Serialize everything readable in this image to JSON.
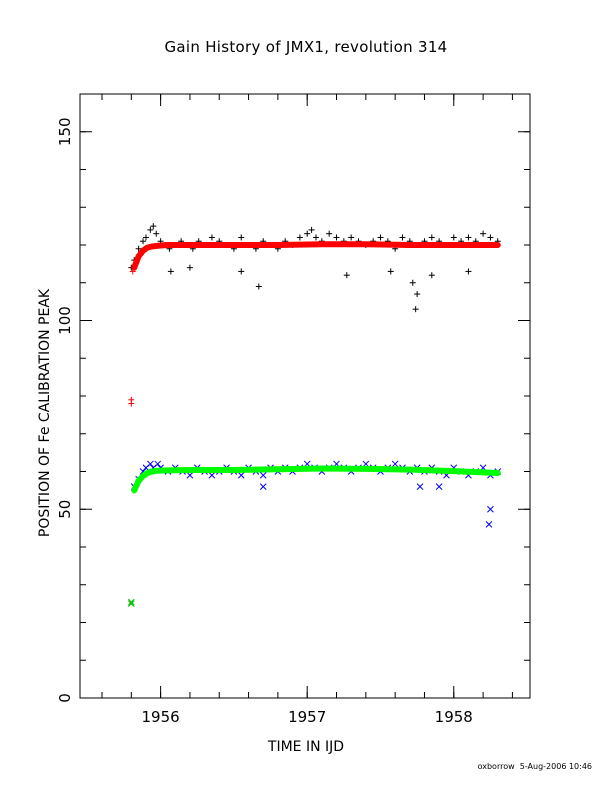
{
  "chart_data": {
    "type": "scatter",
    "title": "Gain History of JMX1, revolution 314",
    "xlabel": "TIME IN IJD",
    "ylabel": "POSITION OF Fe CALIBRATION PEAK",
    "xlim": [
      1955.45,
      1958.52
    ],
    "ylim": [
      0,
      160
    ],
    "xticks": [
      1956,
      1957,
      1958
    ],
    "yticks": [
      0,
      50,
      100,
      150
    ],
    "x_minor_step": 0.2,
    "y_minor_step": 10,
    "grid": false,
    "series": [
      {
        "marker": "+",
        "color": "#000000",
        "kind": "points",
        "x": [
          1955.8,
          1955.82,
          1955.85,
          1955.88,
          1955.9,
          1955.93,
          1955.95,
          1955.97,
          1956.0,
          1956.03,
          1956.06,
          1956.1,
          1956.14,
          1956.18,
          1956.22,
          1956.26,
          1956.3,
          1956.35,
          1956.4,
          1956.45,
          1956.5,
          1956.55,
          1956.6,
          1956.65,
          1956.7,
          1956.75,
          1956.8,
          1956.85,
          1956.9,
          1956.95,
          1957.0,
          1957.03,
          1957.06,
          1957.1,
          1957.15,
          1957.2,
          1957.25,
          1957.3,
          1957.35,
          1957.4,
          1957.45,
          1957.5,
          1957.55,
          1957.6,
          1957.65,
          1957.7,
          1957.75,
          1957.8,
          1957.85,
          1957.9,
          1957.95,
          1958.0,
          1958.05,
          1958.1,
          1958.15,
          1958.2,
          1958.25,
          1958.3,
          1957.74,
          1957.75,
          1956.67,
          1956.07,
          1956.2,
          1956.55,
          1957.27,
          1957.57,
          1957.72,
          1957.85,
          1958.1
        ],
        "y": [
          114,
          116,
          119,
          121,
          122,
          124,
          125,
          123,
          121,
          120,
          119,
          120,
          121,
          120,
          119,
          121,
          120,
          122,
          121,
          120,
          119,
          122,
          120,
          119,
          121,
          120,
          119,
          121,
          120,
          122,
          123,
          124,
          122,
          121,
          123,
          122,
          121,
          122,
          121,
          120,
          121,
          122,
          121,
          119,
          122,
          121,
          120,
          121,
          122,
          121,
          120,
          122,
          121,
          122,
          121,
          123,
          122,
          121,
          103,
          107,
          109,
          113,
          114,
          113,
          112,
          113,
          110,
          112,
          113
        ]
      },
      {
        "marker": "+",
        "color": "#ff0000",
        "kind": "points",
        "x": [
          1955.8,
          1955.8,
          1955.81,
          1955.82
        ],
        "y": [
          79,
          78,
          113,
          114
        ]
      },
      {
        "marker": "x",
        "color": "#0000ff",
        "kind": "points",
        "x": [
          1955.82,
          1955.85,
          1955.88,
          1955.9,
          1955.93,
          1955.95,
          1955.98,
          1956.0,
          1956.05,
          1956.1,
          1956.15,
          1956.2,
          1956.25,
          1956.3,
          1956.35,
          1956.4,
          1956.45,
          1956.5,
          1956.55,
          1956.6,
          1956.65,
          1956.7,
          1956.75,
          1956.8,
          1956.85,
          1956.9,
          1956.95,
          1957.0,
          1957.05,
          1957.1,
          1957.15,
          1957.2,
          1957.25,
          1957.3,
          1957.35,
          1957.4,
          1957.45,
          1957.5,
          1957.55,
          1957.6,
          1957.65,
          1957.7,
          1957.75,
          1957.8,
          1957.85,
          1957.9,
          1957.95,
          1958.0,
          1958.05,
          1958.1,
          1958.15,
          1958.2,
          1958.25,
          1958.3,
          1958.24,
          1958.25,
          1956.7,
          1957.77,
          1957.9
        ],
        "y": [
          56,
          58,
          60,
          61,
          62,
          61,
          62,
          61,
          60,
          61,
          60,
          59,
          61,
          60,
          59,
          60,
          61,
          60,
          59,
          61,
          60,
          59,
          61,
          60,
          61,
          60,
          61,
          62,
          61,
          60,
          61,
          62,
          61,
          60,
          61,
          62,
          61,
          60,
          61,
          62,
          61,
          60,
          61,
          60,
          61,
          60,
          59,
          61,
          60,
          59,
          60,
          61,
          59,
          60,
          46,
          50,
          56,
          56,
          56
        ]
      },
      {
        "marker": "x",
        "color": "#00c000",
        "kind": "points",
        "x": [
          1955.8,
          1955.8
        ],
        "y": [
          25,
          25.4
        ]
      },
      {
        "color": "#ff0000",
        "kind": "fit",
        "x": [
          1955.82,
          1955.85,
          1955.88,
          1955.91,
          1955.94,
          1955.98,
          1956.05,
          1956.2,
          1956.5,
          1956.8,
          1957.1,
          1957.4,
          1957.7,
          1958.0,
          1958.3
        ],
        "y": [
          114,
          117,
          118.5,
          119.3,
          119.6,
          119.8,
          120,
          120,
          120,
          120,
          120.2,
          120.2,
          120,
          120,
          120
        ]
      },
      {
        "color": "#00ff00",
        "kind": "fit",
        "x": [
          1955.82,
          1955.85,
          1955.88,
          1955.91,
          1955.94,
          1955.98,
          1956.05,
          1956.2,
          1956.5,
          1956.8,
          1957.1,
          1957.4,
          1957.7,
          1958.0,
          1958.3
        ],
        "y": [
          55,
          57.5,
          58.8,
          59.6,
          60,
          60.2,
          60.3,
          60.4,
          60.4,
          60.6,
          60.8,
          60.7,
          60.5,
          60.1,
          59.6
        ]
      }
    ]
  },
  "footer": "oxborrow  5-Aug-2006 10:46"
}
